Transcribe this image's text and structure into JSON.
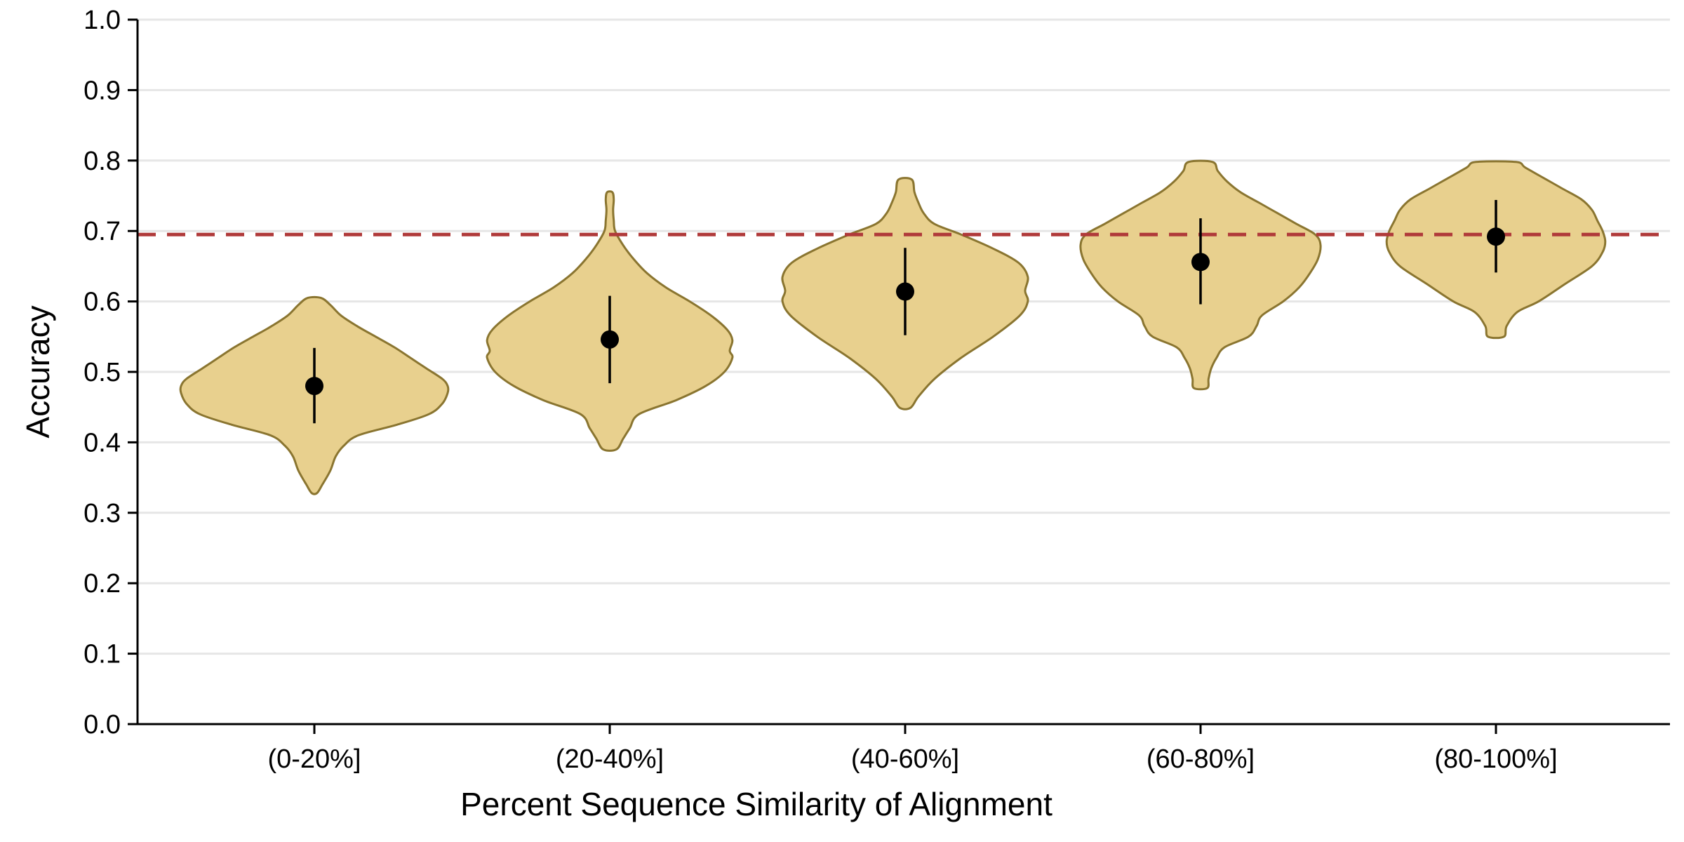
{
  "chart_data": {
    "type": "violin",
    "xlabel": "Percent Sequence Similarity of Alignment",
    "ylabel": "Accuracy",
    "ylim": [
      0.0,
      1.0
    ],
    "yticks": [
      "0.0",
      "0.1",
      "0.2",
      "0.3",
      "0.4",
      "0.5",
      "0.6",
      "0.7",
      "0.8",
      "0.9",
      "1.0"
    ],
    "categories": [
      "(0-20%]",
      "(20-40%]",
      "(40-60%]",
      "(60-80%]",
      "(80-100%]"
    ],
    "grid": "horizontal",
    "reference_line": {
      "y": 0.695,
      "style": "dashed",
      "color": "#b03a3a"
    },
    "colors": {
      "violin_fill": "#e8d08e",
      "violin_edge": "#8a7530",
      "points": "#000000"
    },
    "series": [
      {
        "means": [
          0.48,
          0.546,
          0.614,
          0.656,
          0.692
        ],
        "ci_low": [
          0.427,
          0.484,
          0.552,
          0.596,
          0.641
        ],
        "ci_high": [
          0.534,
          0.608,
          0.676,
          0.718,
          0.744
        ],
        "violins": [
          {
            "min": 0.328,
            "max": 0.605,
            "profile": [
              [
                0.328,
                0.02
              ],
              [
                0.34,
                0.06
              ],
              [
                0.36,
                0.12
              ],
              [
                0.38,
                0.16
              ],
              [
                0.395,
                0.22
              ],
              [
                0.41,
                0.33
              ],
              [
                0.425,
                0.62
              ],
              [
                0.44,
                0.86
              ],
              [
                0.455,
                0.96
              ],
              [
                0.47,
                1.0
              ],
              [
                0.48,
                1.0
              ],
              [
                0.49,
                0.96
              ],
              [
                0.505,
                0.84
              ],
              [
                0.52,
                0.72
              ],
              [
                0.535,
                0.6
              ],
              [
                0.55,
                0.46
              ],
              [
                0.565,
                0.32
              ],
              [
                0.58,
                0.2
              ],
              [
                0.595,
                0.12
              ],
              [
                0.605,
                0.05
              ]
            ]
          },
          {
            "min": 0.39,
            "max": 0.755,
            "profile": [
              [
                0.39,
                0.05
              ],
              [
                0.405,
                0.1
              ],
              [
                0.42,
                0.15
              ],
              [
                0.44,
                0.22
              ],
              [
                0.46,
                0.5
              ],
              [
                0.48,
                0.72
              ],
              [
                0.5,
                0.86
              ],
              [
                0.52,
                0.92
              ],
              [
                0.53,
                0.9
              ],
              [
                0.545,
                0.92
              ],
              [
                0.56,
                0.88
              ],
              [
                0.58,
                0.76
              ],
              [
                0.6,
                0.6
              ],
              [
                0.62,
                0.42
              ],
              [
                0.64,
                0.28
              ],
              [
                0.66,
                0.18
              ],
              [
                0.68,
                0.1
              ],
              [
                0.7,
                0.04
              ],
              [
                0.715,
                0.03
              ],
              [
                0.73,
                0.025
              ],
              [
                0.745,
                0.03
              ],
              [
                0.755,
                0.02
              ]
            ]
          },
          {
            "min": 0.449,
            "max": 0.773,
            "profile": [
              [
                0.449,
                0.04
              ],
              [
                0.465,
                0.1
              ],
              [
                0.49,
                0.22
              ],
              [
                0.52,
                0.42
              ],
              [
                0.55,
                0.66
              ],
              [
                0.58,
                0.86
              ],
              [
                0.6,
                0.92
              ],
              [
                0.615,
                0.9
              ],
              [
                0.635,
                0.92
              ],
              [
                0.655,
                0.85
              ],
              [
                0.675,
                0.66
              ],
              [
                0.695,
                0.42
              ],
              [
                0.71,
                0.22
              ],
              [
                0.725,
                0.14
              ],
              [
                0.74,
                0.1
              ],
              [
                0.755,
                0.07
              ],
              [
                0.773,
                0.05
              ]
            ]
          },
          {
            "min": 0.477,
            "max": 0.798,
            "profile": [
              [
                0.477,
                0.05
              ],
              [
                0.49,
                0.06
              ],
              [
                0.505,
                0.08
              ],
              [
                0.52,
                0.12
              ],
              [
                0.535,
                0.18
              ],
              [
                0.55,
                0.36
              ],
              [
                0.565,
                0.42
              ],
              [
                0.58,
                0.46
              ],
              [
                0.6,
                0.62
              ],
              [
                0.62,
                0.74
              ],
              [
                0.64,
                0.82
              ],
              [
                0.66,
                0.88
              ],
              [
                0.68,
                0.9
              ],
              [
                0.695,
                0.86
              ],
              [
                0.71,
                0.72
              ],
              [
                0.725,
                0.58
              ],
              [
                0.74,
                0.44
              ],
              [
                0.755,
                0.3
              ],
              [
                0.77,
                0.2
              ],
              [
                0.785,
                0.13
              ],
              [
                0.798,
                0.09
              ]
            ]
          },
          {
            "min": 0.55,
            "max": 0.798,
            "profile": [
              [
                0.55,
                0.06
              ],
              [
                0.565,
                0.08
              ],
              [
                0.585,
                0.16
              ],
              [
                0.6,
                0.32
              ],
              [
                0.625,
                0.52
              ],
              [
                0.65,
                0.72
              ],
              [
                0.67,
                0.8
              ],
              [
                0.685,
                0.82
              ],
              [
                0.7,
                0.8
              ],
              [
                0.715,
                0.76
              ],
              [
                0.73,
                0.72
              ],
              [
                0.745,
                0.64
              ],
              [
                0.76,
                0.5
              ],
              [
                0.775,
                0.36
              ],
              [
                0.79,
                0.22
              ],
              [
                0.798,
                0.15
              ]
            ]
          }
        ]
      }
    ]
  }
}
